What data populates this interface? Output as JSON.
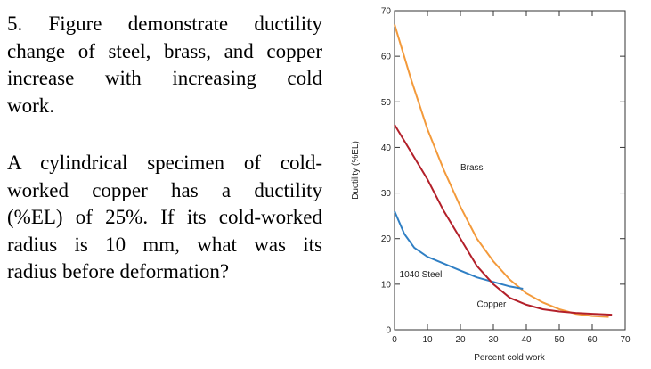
{
  "text": {
    "paragraphs": [
      [
        "5. Figure demonstrate ductility",
        "change of steel, brass, and copper",
        "increase with increasing cold",
        "work."
      ],
      [
        "A cylindrical specimen of cold-",
        "worked copper has a ductility",
        "(%EL) of 25%. If its cold-worked",
        "radius is 10 mm, what was its",
        "radius before deformation?"
      ]
    ]
  },
  "chart_data": {
    "type": "line",
    "x_label": "Percent cold work",
    "y_label": "Ductility (%EL)",
    "xlim": [
      0,
      70
    ],
    "ylim": [
      0,
      70
    ],
    "xticks": [
      0,
      10,
      20,
      30,
      40,
      50,
      60,
      70
    ],
    "yticks": [
      0,
      10,
      20,
      30,
      40,
      50,
      60,
      70
    ],
    "series": [
      {
        "name": "Brass",
        "color": "#f39a3b",
        "x": [
          0,
          5,
          10,
          15,
          20,
          25,
          30,
          35,
          40,
          45,
          50,
          55,
          60,
          65
        ],
        "values": [
          67,
          55,
          44,
          35,
          27,
          20,
          15,
          11,
          8,
          6,
          4.5,
          3.5,
          3,
          2.8
        ]
      },
      {
        "name": "1040 Steel",
        "color": "#2f7fc4",
        "x": [
          0,
          3,
          6,
          10,
          15,
          20,
          25,
          30,
          35,
          39
        ],
        "values": [
          26,
          21,
          18,
          16,
          14.5,
          13,
          11.5,
          10.5,
          9.5,
          9
        ]
      },
      {
        "name": "Copper",
        "color": "#b3202a",
        "x": [
          0,
          5,
          10,
          15,
          20,
          25,
          30,
          35,
          40,
          45,
          50,
          55,
          60,
          66
        ],
        "values": [
          45,
          39,
          33,
          26,
          20,
          14,
          10,
          7,
          5.5,
          4.5,
          4,
          3.7,
          3.5,
          3.3
        ]
      }
    ]
  }
}
